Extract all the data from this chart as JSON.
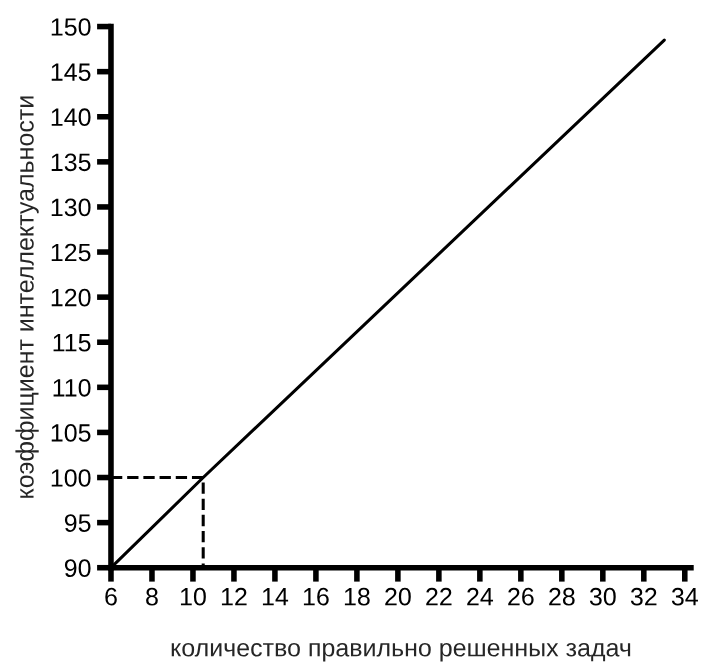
{
  "chart_data": {
    "type": "line",
    "xlabel": "количество правильно решенных задач",
    "ylabel": "коэффициент интеллектуальности",
    "series": [
      {
        "color": "#000000",
        "line_style": "solid",
        "x": [
          6,
          10.5,
          33
        ],
        "values": [
          90,
          100,
          148.5
        ]
      },
      {
        "color": "#000000",
        "line_style": "dashed",
        "x": [
          6,
          10.5,
          10.5
        ],
        "values": [
          100,
          100,
          90
        ]
      }
    ],
    "xlim": [
      6,
      34.3
    ],
    "xticks": [
      6,
      8,
      10,
      12,
      14,
      16,
      18,
      20,
      22,
      24,
      26,
      28,
      30,
      32,
      34
    ],
    "ylim": [
      90,
      150
    ],
    "yticks": [
      90,
      95,
      100,
      105,
      110,
      115,
      120,
      125,
      130,
      135,
      140,
      145,
      150
    ],
    "grid": false,
    "legend": false,
    "marker": "none"
  }
}
